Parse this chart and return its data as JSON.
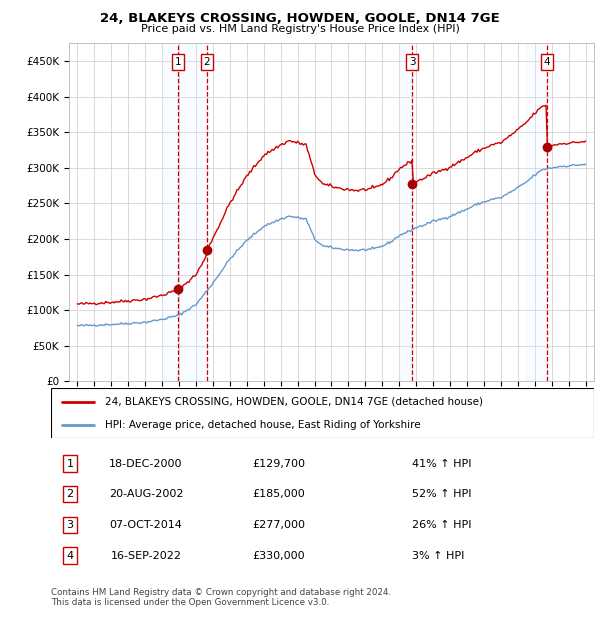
{
  "title": "24, BLAKEYS CROSSING, HOWDEN, GOOLE, DN14 7GE",
  "subtitle": "Price paid vs. HM Land Registry's House Price Index (HPI)",
  "hpi_label": "HPI: Average price, detached house, East Riding of Yorkshire",
  "property_label": "24, BLAKEYS CROSSING, HOWDEN, GOOLE, DN14 7GE (detached house)",
  "footer_line1": "Contains HM Land Registry data © Crown copyright and database right 2024.",
  "footer_line2": "This data is licensed under the Open Government Licence v3.0.",
  "sales": [
    {
      "num": 1,
      "date": "2000-12-18",
      "label_date": "18-DEC-2000",
      "price": 129700,
      "pct": "41%",
      "x_year": 2000.96
    },
    {
      "num": 2,
      "date": "2002-08-20",
      "label_date": "20-AUG-2002",
      "price": 185000,
      "pct": "52%",
      "x_year": 2002.63
    },
    {
      "num": 3,
      "date": "2014-10-07",
      "label_date": "07-OCT-2014",
      "price": 277000,
      "pct": "26%",
      "x_year": 2014.76
    },
    {
      "num": 4,
      "date": "2022-09-16",
      "label_date": "16-SEP-2022",
      "price": 330000,
      "pct": "3%",
      "x_year": 2022.71
    }
  ],
  "ylim": [
    0,
    475000
  ],
  "xlim_start": 1994.5,
  "xlim_end": 2025.5,
  "property_color": "#cc0000",
  "hpi_color": "#6699cc",
  "sale_marker_color": "#aa0000",
  "vline_color": "#cc0000",
  "shade_color": "#ddeeff",
  "grid_color": "#cccccc",
  "background_color": "#ffffff",
  "shade_ranges": [
    [
      2000.0,
      2002.63
    ],
    [
      2014.0,
      2014.76
    ],
    [
      2021.5,
      2022.71
    ]
  ]
}
